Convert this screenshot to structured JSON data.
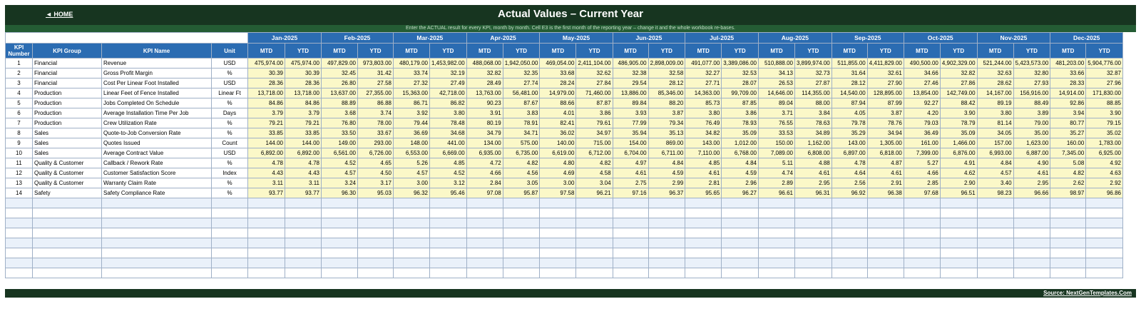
{
  "header": {
    "home_label": "◄ HOME",
    "title": "Actual Values  –  Current Year",
    "subtitle": "Enter the ACTUAL result for every KPI, month by month. Cell E3 is the first month of the reporting year – change it and the whole workbook re-bases."
  },
  "columns": {
    "kpi_number": "KPI Number",
    "kpi_group": "KPI Group",
    "kpi_name": "KPI Name",
    "unit": "Unit",
    "mtd": "MTD",
    "ytd": "YTD"
  },
  "months": [
    "Jan-2025",
    "Feb-2025",
    "Mar-2025",
    "Apr-2025",
    "May-2025",
    "Jun-2025",
    "Jul-2025",
    "Aug-2025",
    "Sep-2025",
    "Oct-2025",
    "Nov-2025",
    "Dec-2025"
  ],
  "rows": [
    {
      "num": "1",
      "group": "Financial",
      "name": "Revenue",
      "unit": "USD",
      "values": [
        "475,974.00",
        "475,974.00",
        "497,829.00",
        "973,803.00",
        "480,179.00",
        "1,453,982.00",
        "488,068.00",
        "1,942,050.00",
        "469,054.00",
        "2,411,104.00",
        "486,905.00",
        "2,898,009.00",
        "491,077.00",
        "3,389,086.00",
        "510,888.00",
        "3,899,974.00",
        "511,855.00",
        "4,411,829.00",
        "490,500.00",
        "4,902,329.00",
        "521,244.00",
        "5,423,573.00",
        "481,203.00",
        "5,904,776.00"
      ]
    },
    {
      "num": "2",
      "group": "Financial",
      "name": "Gross Profit Margin",
      "unit": "%",
      "values": [
        "30.39",
        "30.39",
        "32.45",
        "31.42",
        "33.74",
        "32.19",
        "32.82",
        "32.35",
        "33.68",
        "32.62",
        "32.38",
        "32.58",
        "32.27",
        "32.53",
        "34.13",
        "32.73",
        "31.64",
        "32.61",
        "34.66",
        "32.82",
        "32.63",
        "32.80",
        "33.66",
        "32.87"
      ]
    },
    {
      "num": "3",
      "group": "Financial",
      "name": "Cost Per Linear Foot Installed",
      "unit": "USD",
      "values": [
        "28.36",
        "28.36",
        "26.80",
        "27.58",
        "27.32",
        "27.49",
        "28.49",
        "27.74",
        "28.24",
        "27.84",
        "29.54",
        "28.12",
        "27.71",
        "28.07",
        "26.53",
        "27.87",
        "28.12",
        "27.90",
        "27.46",
        "27.86",
        "28.62",
        "27.93",
        "28.33",
        "27.96"
      ]
    },
    {
      "num": "4",
      "group": "Production",
      "name": "Linear Feet of Fence Installed",
      "unit": "Linear Ft",
      "values": [
        "13,718.00",
        "13,718.00",
        "13,637.00",
        "27,355.00",
        "15,363.00",
        "42,718.00",
        "13,763.00",
        "56,481.00",
        "14,979.00",
        "71,460.00",
        "13,886.00",
        "85,346.00",
        "14,363.00",
        "99,709.00",
        "14,646.00",
        "114,355.00",
        "14,540.00",
        "128,895.00",
        "13,854.00",
        "142,749.00",
        "14,167.00",
        "156,916.00",
        "14,914.00",
        "171,830.00"
      ]
    },
    {
      "num": "5",
      "group": "Production",
      "name": "Jobs Completed On Schedule",
      "unit": "%",
      "values": [
        "84.86",
        "84.86",
        "88.89",
        "86.88",
        "86.71",
        "86.82",
        "90.23",
        "87.67",
        "88.66",
        "87.87",
        "89.84",
        "88.20",
        "85.73",
        "87.85",
        "89.04",
        "88.00",
        "87.94",
        "87.99",
        "92.27",
        "88.42",
        "89.19",
        "88.49",
        "92.86",
        "88.85"
      ]
    },
    {
      "num": "6",
      "group": "Production",
      "name": "Average Installation Time Per Job",
      "unit": "Days",
      "values": [
        "3.79",
        "3.79",
        "3.68",
        "3.74",
        "3.92",
        "3.80",
        "3.91",
        "3.83",
        "4.01",
        "3.86",
        "3.93",
        "3.87",
        "3.80",
        "3.86",
        "3.71",
        "3.84",
        "4.05",
        "3.87",
        "4.20",
        "3.90",
        "3.80",
        "3.89",
        "3.94",
        "3.90"
      ]
    },
    {
      "num": "7",
      "group": "Production",
      "name": "Crew Utilization Rate",
      "unit": "%",
      "values": [
        "79.21",
        "79.21",
        "76.80",
        "78.00",
        "79.44",
        "78.48",
        "80.19",
        "78.91",
        "82.41",
        "79.61",
        "77.99",
        "79.34",
        "76.49",
        "78.93",
        "76.55",
        "78.63",
        "79.78",
        "78.76",
        "79.03",
        "78.79",
        "81.14",
        "79.00",
        "80.77",
        "79.15"
      ]
    },
    {
      "num": "8",
      "group": "Sales",
      "name": "Quote-to-Job Conversion Rate",
      "unit": "%",
      "values": [
        "33.85",
        "33.85",
        "33.50",
        "33.67",
        "36.69",
        "34.68",
        "34.79",
        "34.71",
        "36.02",
        "34.97",
        "35.94",
        "35.13",
        "34.82",
        "35.09",
        "33.53",
        "34.89",
        "35.29",
        "34.94",
        "36.49",
        "35.09",
        "34.05",
        "35.00",
        "35.27",
        "35.02"
      ]
    },
    {
      "num": "9",
      "group": "Sales",
      "name": "Quotes Issued",
      "unit": "Count",
      "values": [
        "144.00",
        "144.00",
        "149.00",
        "293.00",
        "148.00",
        "441.00",
        "134.00",
        "575.00",
        "140.00",
        "715.00",
        "154.00",
        "869.00",
        "143.00",
        "1,012.00",
        "150.00",
        "1,162.00",
        "143.00",
        "1,305.00",
        "161.00",
        "1,466.00",
        "157.00",
        "1,623.00",
        "160.00",
        "1,783.00"
      ]
    },
    {
      "num": "10",
      "group": "Sales",
      "name": "Average Contract Value",
      "unit": "USD",
      "values": [
        "6,892.00",
        "6,892.00",
        "6,561.00",
        "6,726.00",
        "6,553.00",
        "6,669.00",
        "6,935.00",
        "6,735.00",
        "6,619.00",
        "6,712.00",
        "6,704.00",
        "6,711.00",
        "7,110.00",
        "6,768.00",
        "7,089.00",
        "6,808.00",
        "6,897.00",
        "6,818.00",
        "7,399.00",
        "6,876.00",
        "6,993.00",
        "6,887.00",
        "7,345.00",
        "6,925.00"
      ]
    },
    {
      "num": "11",
      "group": "Quality & Customer",
      "name": "Callback / Rework Rate",
      "unit": "%",
      "values": [
        "4.78",
        "4.78",
        "4.52",
        "4.65",
        "5.26",
        "4.85",
        "4.72",
        "4.82",
        "4.80",
        "4.82",
        "4.97",
        "4.84",
        "4.85",
        "4.84",
        "5.11",
        "4.88",
        "4.78",
        "4.87",
        "5.27",
        "4.91",
        "4.84",
        "4.90",
        "5.08",
        "4.92"
      ]
    },
    {
      "num": "12",
      "group": "Quality & Customer",
      "name": "Customer Satisfaction Score",
      "unit": "Index",
      "values": [
        "4.43",
        "4.43",
        "4.57",
        "4.50",
        "4.57",
        "4.52",
        "4.66",
        "4.56",
        "4.69",
        "4.58",
        "4.61",
        "4.59",
        "4.61",
        "4.59",
        "4.74",
        "4.61",
        "4.64",
        "4.61",
        "4.66",
        "4.62",
        "4.57",
        "4.61",
        "4.82",
        "4.63"
      ]
    },
    {
      "num": "13",
      "group": "Quality & Customer",
      "name": "Warranty Claim Rate",
      "unit": "%",
      "values": [
        "3.11",
        "3.11",
        "3.24",
        "3.17",
        "3.00",
        "3.12",
        "2.84",
        "3.05",
        "3.00",
        "3.04",
        "2.75",
        "2.99",
        "2.81",
        "2.96",
        "2.89",
        "2.95",
        "2.56",
        "2.91",
        "2.85",
        "2.90",
        "3.40",
        "2.95",
        "2.62",
        "2.92"
      ]
    },
    {
      "num": "14",
      "group": "Safety",
      "name": "Safety Compliance Rate",
      "unit": "%",
      "values": [
        "93.77",
        "93.77",
        "96.30",
        "95.03",
        "96.32",
        "95.46",
        "97.08",
        "95.87",
        "97.58",
        "96.21",
        "97.16",
        "96.37",
        "95.65",
        "96.27",
        "96.61",
        "96.31",
        "96.92",
        "96.38",
        "97.68",
        "96.51",
        "98.23",
        "96.66",
        "98.97",
        "96.86"
      ]
    }
  ],
  "empty_row_count": 8,
  "footer": {
    "source": "Source: NextGenTemplates.Com"
  },
  "colors": {
    "dark_green": "#173520",
    "header_blue": "#2b6cb2",
    "value_yellow": "#fbf8c8",
    "empty_blue": "#eaf1fa"
  }
}
